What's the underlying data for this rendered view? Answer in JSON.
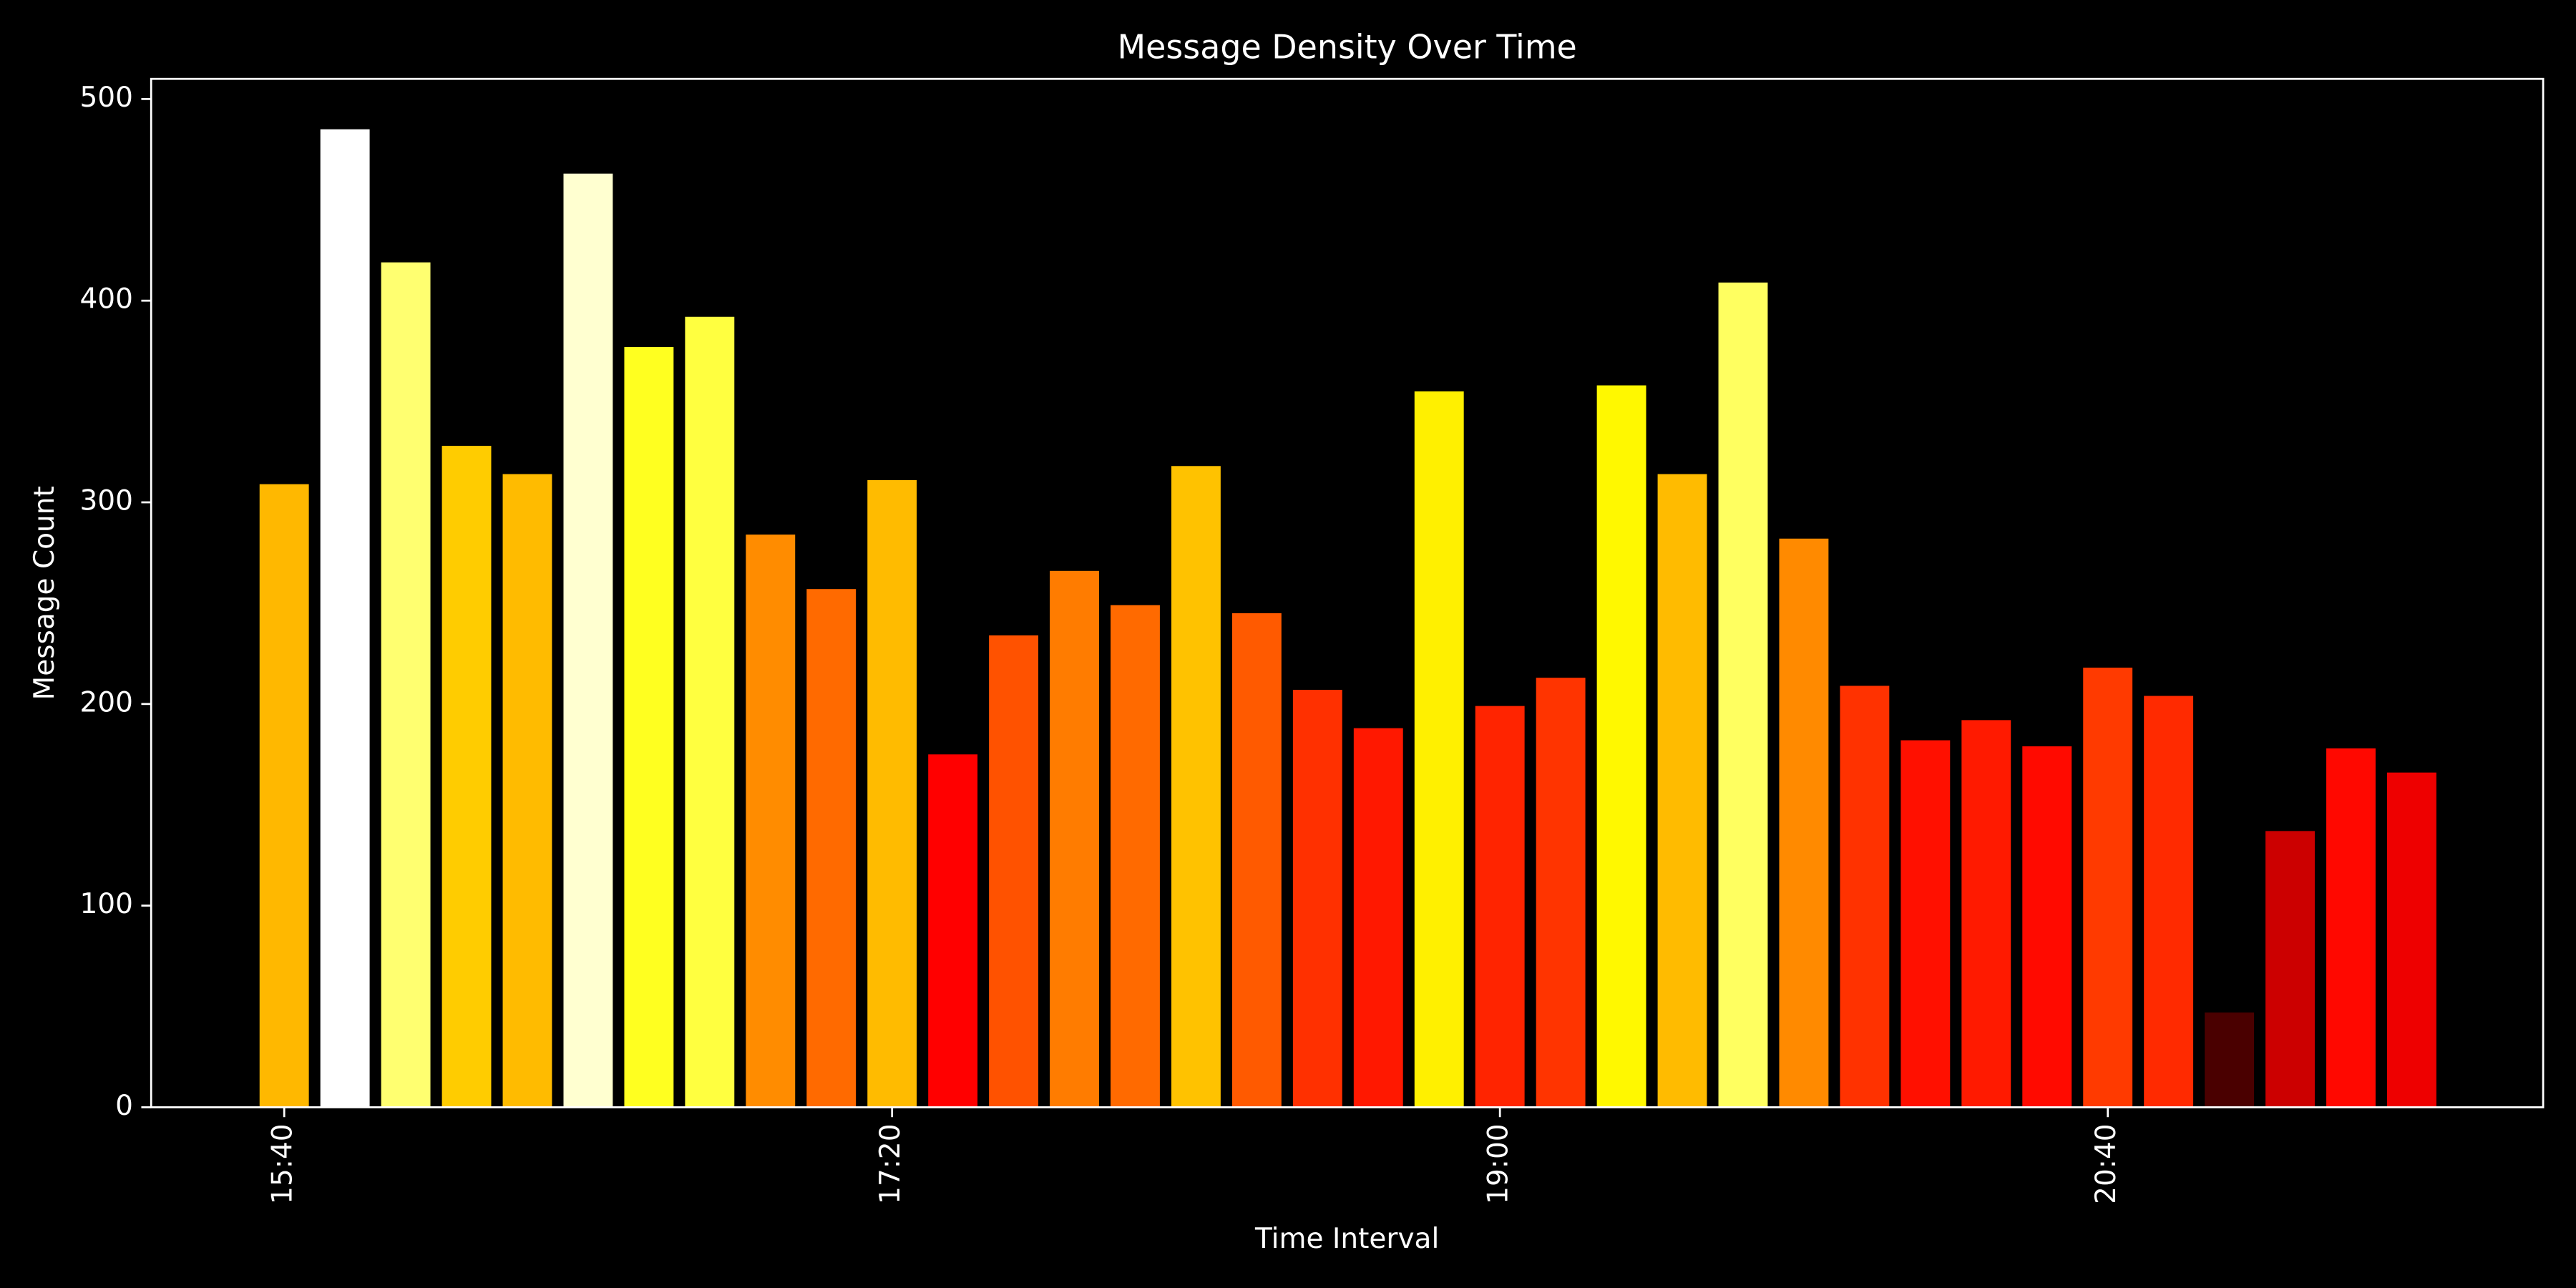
{
  "chart_data": {
    "type": "bar",
    "title": "Message Density Over Time",
    "x_label": "Time Interval",
    "y_label": "Message Count",
    "categories": [
      "15:40",
      null,
      null,
      null,
      null,
      null,
      null,
      null,
      null,
      null,
      "17:20",
      null,
      null,
      null,
      null,
      null,
      null,
      null,
      null,
      null,
      "19:00",
      null,
      null,
      null,
      null,
      null,
      null,
      null,
      null,
      null,
      "20:40",
      null,
      null,
      null,
      null,
      null
    ],
    "values": [
      309,
      485,
      419,
      328,
      314,
      463,
      377,
      392,
      284,
      257,
      311,
      175,
      234,
      266,
      249,
      318,
      245,
      207,
      188,
      355,
      199,
      213,
      358,
      314,
      409,
      282,
      209,
      182,
      192,
      179,
      218,
      204,
      47,
      137,
      178,
      166
    ],
    "colors": [
      "#ffb800",
      "#ffffff",
      "#ffff70",
      "#ffcc00",
      "#ffbb00",
      "#ffffd0",
      "#ffff20",
      "#ffff40",
      "#ff8c00",
      "#ff6a00",
      "#ffbb00",
      "#ff0000",
      "#ff5200",
      "#ff7c00",
      "#ff6a00",
      "#ffc200",
      "#ff5a00",
      "#ff3000",
      "#ff1800",
      "#fff000",
      "#ff2400",
      "#ff3400",
      "#fff800",
      "#ffbb00",
      "#ffff60",
      "#ff8a00",
      "#ff3200",
      "#ff1000",
      "#ff1a00",
      "#ff0a00",
      "#ff3a00",
      "#ff2a00",
      "#4a0000",
      "#cc0000",
      "#ff0800",
      "#ee0000"
    ],
    "ylim": [
      0,
      510
    ],
    "yticks": [
      0,
      100,
      200,
      300,
      400,
      500
    ]
  }
}
